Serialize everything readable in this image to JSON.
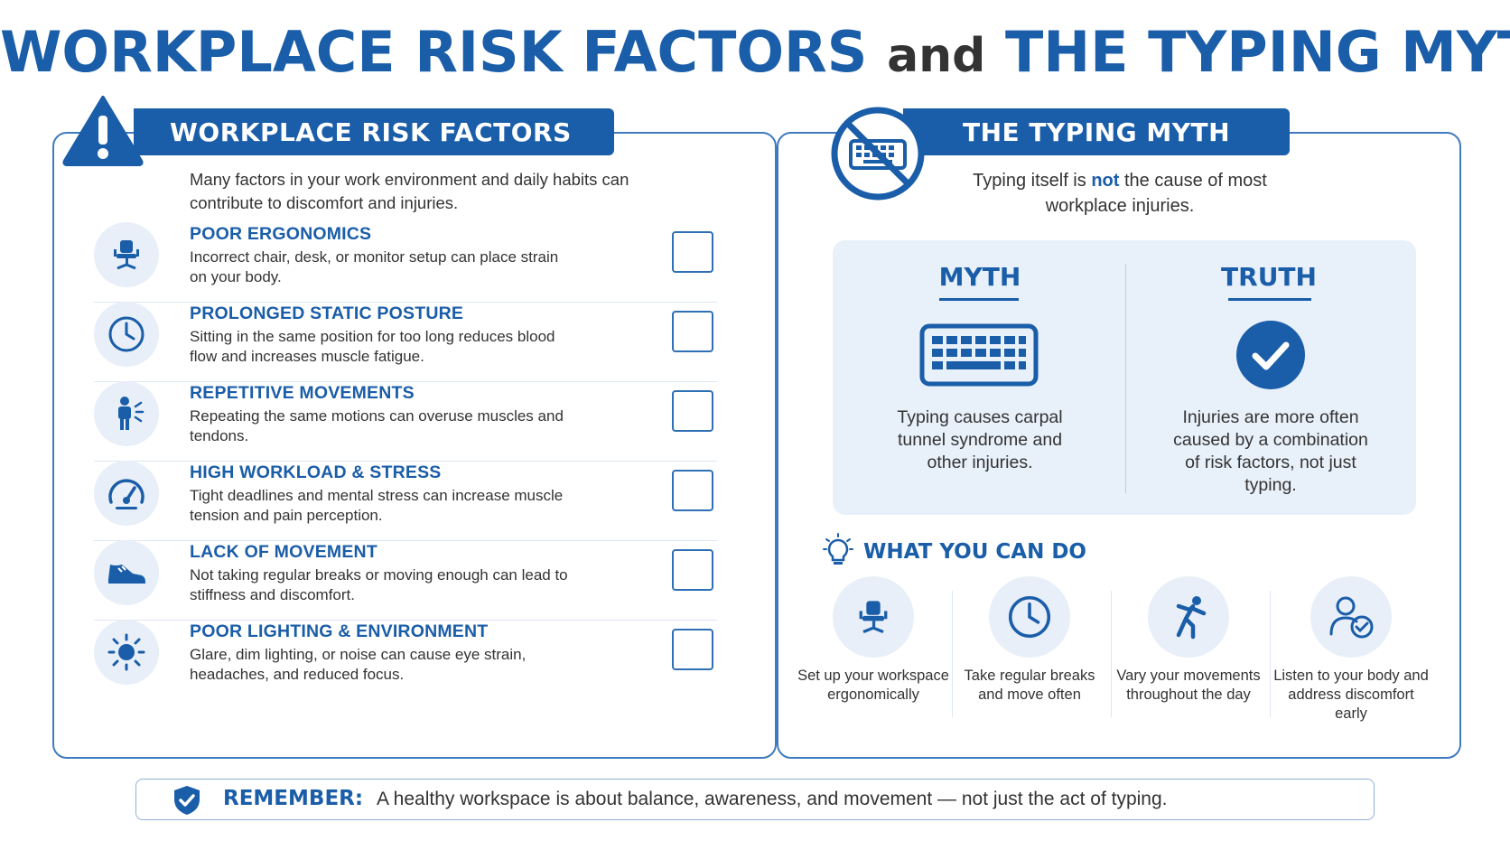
{
  "title": {
    "part1": "WORKPLACE RISK FACTORS",
    "connector": "and",
    "part2": "THE TYPING MYTH"
  },
  "left": {
    "heading": "WORKPLACE RISK FACTORS",
    "intro": "Many factors in your work environment and daily habits can contribute to discomfort and injuries.",
    "items": [
      {
        "title": "POOR ERGONOMICS",
        "desc": "Incorrect chair, desk, or monitor setup can place strain on your body.",
        "icon": "office-chair-icon"
      },
      {
        "title": "PROLONGED STATIC POSTURE",
        "desc": "Sitting in the same position for too long reduces blood flow and increases muscle fatigue.",
        "icon": "clock-icon"
      },
      {
        "title": "REPETITIVE MOVEMENTS",
        "desc": "Repeating the same motions can overuse muscles and tendons.",
        "icon": "person-strain-icon"
      },
      {
        "title": "HIGH WORKLOAD & STRESS",
        "desc": "Tight deadlines and mental stress can increase muscle tension and pain perception.",
        "icon": "gauge-icon"
      },
      {
        "title": "LACK OF MOVEMENT",
        "desc": "Not taking regular breaks or moving enough can lead to stiffness and discomfort.",
        "icon": "shoe-icon"
      },
      {
        "title": "POOR LIGHTING & ENVIRONMENT",
        "desc": "Glare, dim lighting, or noise can cause eye strain, headaches, and reduced focus.",
        "icon": "sun-icon"
      }
    ]
  },
  "right": {
    "heading": "THE TYPING MYTH",
    "intro_pre": "Typing itself is",
    "intro_em": "not",
    "intro_post": "the cause of most workplace injuries.",
    "myth": {
      "label": "MYTH",
      "text": "Typing causes carpal tunnel syndrome and other injuries."
    },
    "truth": {
      "label": "TRUTH",
      "text": "Injuries are more often caused by a combination of risk factors, not just typing."
    },
    "what_you_can_do": "WHAT YOU CAN DO",
    "actions": [
      {
        "label": "Set up your workspace ergonomically",
        "icon": "office-chair-icon"
      },
      {
        "label": "Take regular breaks and move often",
        "icon": "clock-icon"
      },
      {
        "label": "Vary your movements throughout the day",
        "icon": "stretching-person-icon"
      },
      {
        "label": "Listen to your body and address discomfort early",
        "icon": "user-check-icon"
      }
    ]
  },
  "remember": {
    "label": "REMEMBER:",
    "text": "A healthy workspace is about balance, awareness, and movement — not just the act of typing."
  },
  "colors": {
    "accent": "#1a5da8",
    "light_fill": "#e8eff8",
    "text": "#333333"
  }
}
